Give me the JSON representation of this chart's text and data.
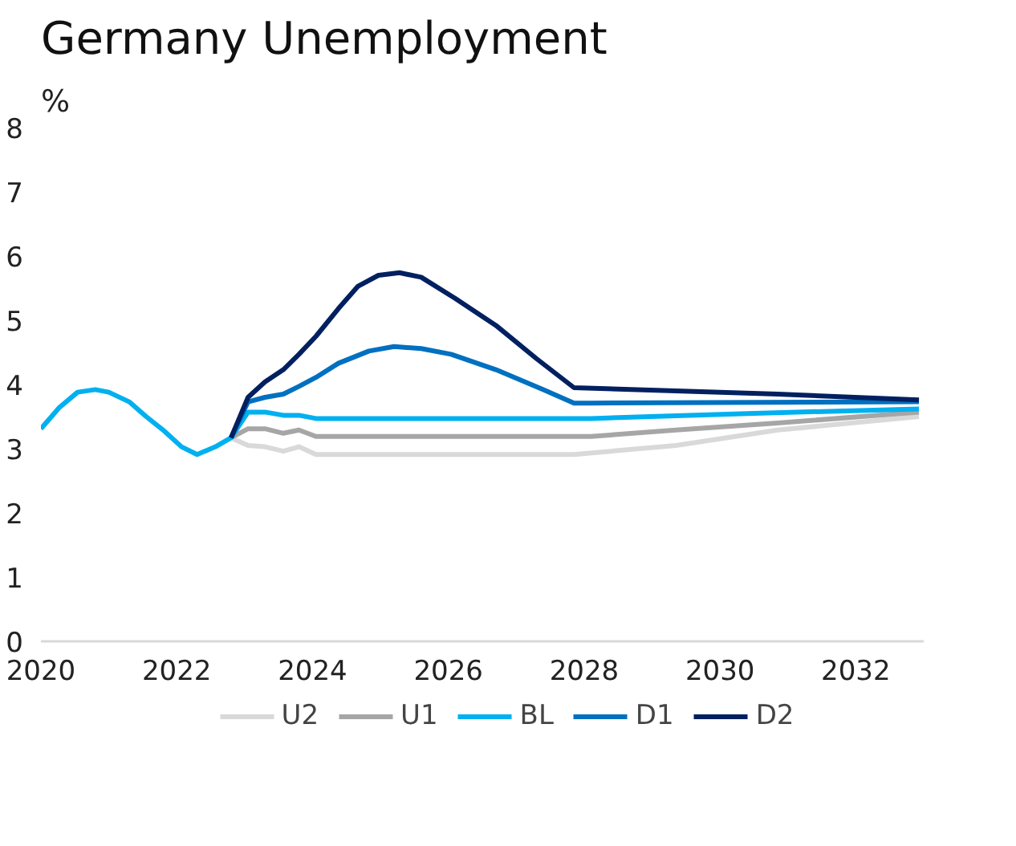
{
  "chart_data": {
    "type": "line",
    "title": "Germany Unemployment",
    "ylabel": "%",
    "xlim": [
      2020,
      2033
    ],
    "xticks": [
      2020,
      2022,
      2024,
      2026,
      2028,
      2030,
      2032
    ],
    "ylim": [
      0,
      8
    ],
    "yticks": [
      0,
      1,
      2,
      3,
      4,
      5,
      6,
      7,
      8
    ],
    "grid": false,
    "legend": "bottom",
    "line_style": "solid",
    "marker": "none",
    "series": [
      {
        "name": "U2",
        "color": "#d9d9d9",
        "x": [
          2022.8,
          2023.05,
          2023.3,
          2023.57,
          2023.8,
          2024.05,
          2027.85,
          2029.35,
          2030.85,
          2032.93
        ],
        "values": [
          3.17,
          3.05,
          3.03,
          2.96,
          3.03,
          2.91,
          2.91,
          3.05,
          3.29,
          3.5
        ]
      },
      {
        "name": "U1",
        "color": "#a6a6a6",
        "x": [
          2022.8,
          2023.05,
          2023.3,
          2023.57,
          2023.8,
          2024.05,
          2028.1,
          2029.35,
          2030.85,
          2032.93
        ],
        "values": [
          3.17,
          3.31,
          3.31,
          3.24,
          3.29,
          3.19,
          3.19,
          3.29,
          3.4,
          3.57
        ]
      },
      {
        "name": "BL",
        "color": "#00b0f0",
        "x": [
          2020.0,
          2020.27,
          2020.54,
          2020.8,
          2021.0,
          2021.3,
          2021.55,
          2021.8,
          2022.07,
          2022.3,
          2022.57,
          2022.8,
          2023.05,
          2023.3,
          2023.57,
          2023.8,
          2024.05,
          2028.1,
          2030.5,
          2032.93
        ],
        "values": [
          3.31,
          3.64,
          3.88,
          3.92,
          3.88,
          3.73,
          3.5,
          3.29,
          3.03,
          2.91,
          3.03,
          3.17,
          3.57,
          3.57,
          3.52,
          3.52,
          3.47,
          3.47,
          3.55,
          3.62
        ]
      },
      {
        "name": "D1",
        "color": "#0070c0",
        "x": [
          2022.8,
          2023.05,
          2023.3,
          2023.57,
          2023.8,
          2024.05,
          2024.38,
          2024.83,
          2025.2,
          2025.6,
          2026.04,
          2026.7,
          2027.4,
          2027.85,
          2028.1,
          2032.93
        ],
        "values": [
          3.17,
          3.73,
          3.8,
          3.85,
          3.97,
          4.11,
          4.33,
          4.52,
          4.59,
          4.56,
          4.47,
          4.23,
          3.92,
          3.71,
          3.71,
          3.73
        ]
      },
      {
        "name": "D2",
        "color": "#002060",
        "x": [
          2022.8,
          2023.05,
          2023.3,
          2023.57,
          2023.8,
          2024.05,
          2024.38,
          2024.67,
          2024.97,
          2025.28,
          2025.6,
          2026.1,
          2026.7,
          2027.3,
          2027.85,
          2029.35,
          2030.85,
          2032.93
        ],
        "values": [
          3.17,
          3.8,
          4.04,
          4.23,
          4.47,
          4.75,
          5.18,
          5.53,
          5.7,
          5.74,
          5.67,
          5.34,
          4.92,
          4.4,
          3.95,
          3.9,
          3.85,
          3.76
        ]
      }
    ]
  }
}
